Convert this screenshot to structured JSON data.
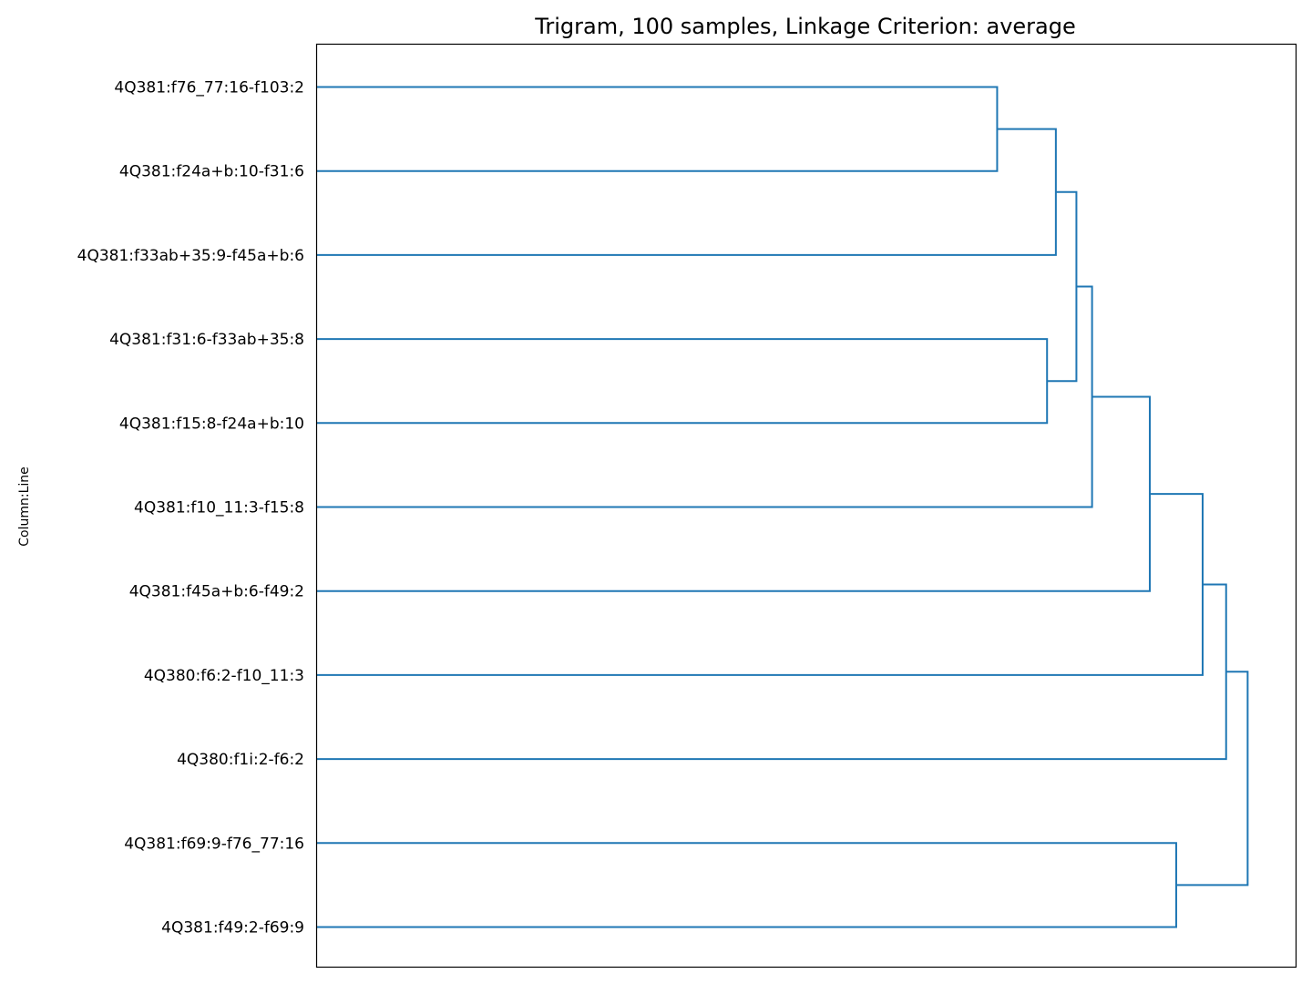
{
  "chart_data": {
    "type": "dendrogram",
    "orientation": "left",
    "title": "Trigram, 100 samples, Linkage Criterion: average",
    "xlabel": "",
    "ylabel": "Column:Line",
    "xticks_visible": false,
    "grid": false,
    "link_color": "#1f77b4",
    "leaves": [
      "4Q381:f76_77:16-f103:2",
      "4Q381:f24a+b:10-f31:6",
      "4Q381:f33ab+35:9-f45a+b:6",
      "4Q381:f31:6-f33ab+35:8",
      "4Q381:f15:8-f24a+b:10",
      "4Q381:f10_11:3-f15:8",
      "4Q381:f45a+b:6-f49:2",
      "4Q380:f6:2-f10_11:3",
      "4Q380:f1i:2-f6:2",
      "4Q381:f69:9-f76_77:16",
      "4Q381:f49:2-f69:9"
    ],
    "merges": [
      {
        "a": 0,
        "b": 1,
        "height": 0.695
      },
      {
        "a": 3,
        "b": 4,
        "height": 0.746
      },
      {
        "a": 11,
        "b": 2,
        "height": 0.755
      },
      {
        "a": 13,
        "b": 12,
        "height": 0.776
      },
      {
        "a": 14,
        "b": 5,
        "height": 0.792
      },
      {
        "a": 9,
        "b": 10,
        "height": 0.878
      },
      {
        "a": 15,
        "b": 6,
        "height": 0.851
      },
      {
        "a": 17,
        "b": 7,
        "height": 0.905
      },
      {
        "a": 18,
        "b": 8,
        "height": 0.929
      },
      {
        "a": 19,
        "b": 16,
        "height": 0.951
      }
    ],
    "xlim": [
      0,
      1.0
    ]
  }
}
